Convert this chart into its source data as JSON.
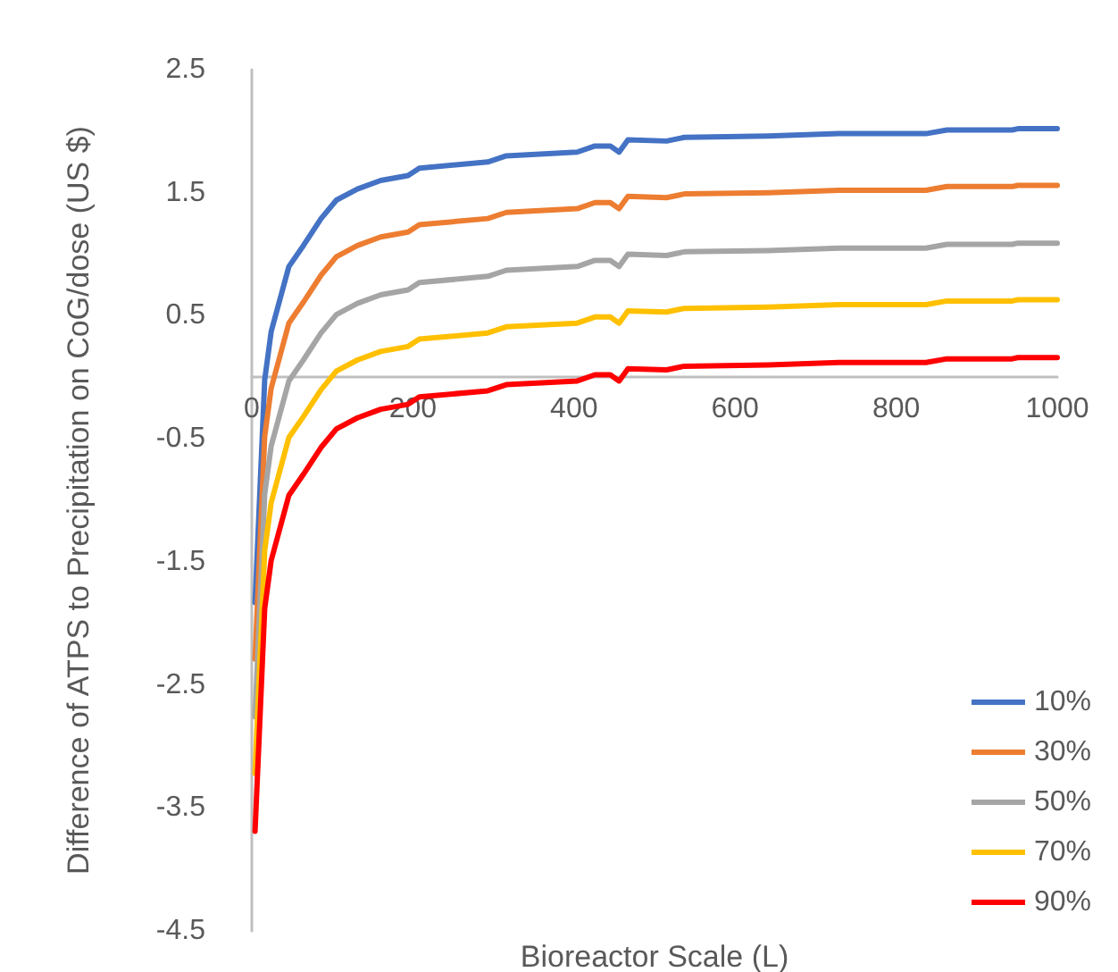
{
  "chart_data": {
    "type": "line",
    "xlabel": "Bioreactor Scale (L)",
    "ylabel": "Difference of ATPS to Precipitation on CoG/dose (US $)",
    "x": [
      4,
      9,
      16,
      24,
      46,
      64,
      86,
      105,
      131,
      160,
      194,
      208,
      293,
      316,
      404,
      426,
      445,
      456,
      467,
      515,
      537,
      641,
      729,
      744,
      837,
      863,
      944,
      951,
      1000
    ],
    "series": [
      {
        "name": "10%",
        "color": "#4472c4",
        "values": [
          -1.83,
          -1.08,
          -0.02,
          0.37,
          0.9,
          1.07,
          1.29,
          1.44,
          1.53,
          1.6,
          1.64,
          1.7,
          1.75,
          1.8,
          1.83,
          1.88,
          1.88,
          1.83,
          1.93,
          1.92,
          1.95,
          1.96,
          1.98,
          1.98,
          1.98,
          2.01,
          2.01,
          2.02,
          2.02
        ]
      },
      {
        "name": "30%",
        "color": "#ed7d31",
        "values": [
          -2.29,
          -1.54,
          -0.48,
          -0.09,
          0.44,
          0.61,
          0.83,
          0.98,
          1.07,
          1.14,
          1.18,
          1.24,
          1.29,
          1.34,
          1.37,
          1.42,
          1.42,
          1.37,
          1.47,
          1.46,
          1.49,
          1.5,
          1.52,
          1.52,
          1.52,
          1.55,
          1.55,
          1.56,
          1.56
        ]
      },
      {
        "name": "50%",
        "color": "#a5a5a5",
        "values": [
          -2.76,
          -2.01,
          -0.95,
          -0.56,
          -0.03,
          0.14,
          0.36,
          0.51,
          0.6,
          0.67,
          0.71,
          0.77,
          0.82,
          0.87,
          0.9,
          0.95,
          0.95,
          0.9,
          1.0,
          0.99,
          1.02,
          1.03,
          1.05,
          1.05,
          1.05,
          1.08,
          1.08,
          1.09,
          1.09
        ]
      },
      {
        "name": "70%",
        "color": "#ffc000",
        "values": [
          -3.22,
          -2.47,
          -1.41,
          -1.02,
          -0.49,
          -0.32,
          -0.1,
          0.05,
          0.14,
          0.21,
          0.25,
          0.31,
          0.36,
          0.41,
          0.44,
          0.49,
          0.49,
          0.44,
          0.54,
          0.53,
          0.56,
          0.57,
          0.59,
          0.59,
          0.59,
          0.62,
          0.62,
          0.63,
          0.63
        ]
      },
      {
        "name": "90%",
        "color": "#ff0000",
        "values": [
          -3.69,
          -2.94,
          -1.88,
          -1.49,
          -0.96,
          -0.79,
          -0.57,
          -0.42,
          -0.33,
          -0.26,
          -0.22,
          -0.16,
          -0.11,
          -0.06,
          -0.03,
          0.02,
          0.02,
          -0.03,
          0.07,
          0.06,
          0.09,
          0.1,
          0.12,
          0.12,
          0.12,
          0.15,
          0.15,
          0.16,
          0.16
        ]
      }
    ],
    "xlim": [
      0,
      1000
    ],
    "xticks": [
      0,
      200,
      400,
      600,
      800,
      1000
    ],
    "ylim": [
      -4.5,
      2.5
    ],
    "yticks": [
      -4.5,
      -3.5,
      -2.5,
      -1.5,
      -0.5,
      0.5,
      1.5,
      2.5
    ],
    "grid": false,
    "legend": "right",
    "marker": "none",
    "line_style": "solid"
  }
}
